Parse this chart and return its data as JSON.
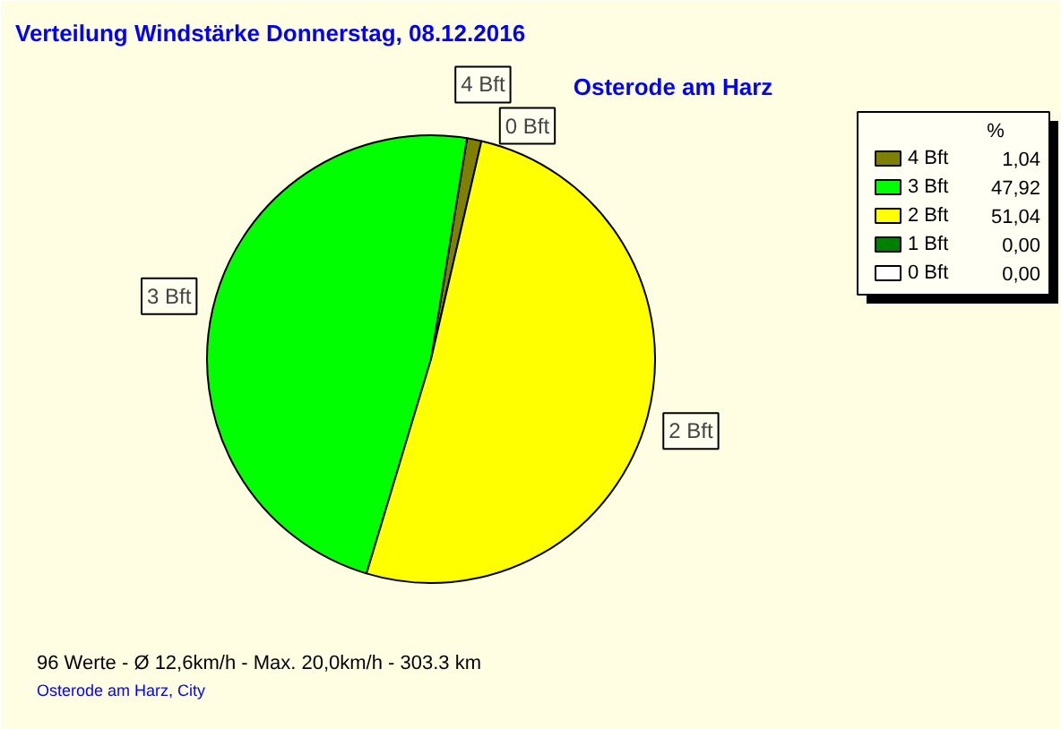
{
  "chart_data": {
    "type": "pie",
    "title": "Verteilung Windstärke  Donnerstag, 08.12.2016",
    "subtitle": "Osterode am Harz",
    "legend_title": "%",
    "categories": [
      "4 Bft",
      "3 Bft",
      "2 Bft",
      "1 Bft",
      "0 Bft"
    ],
    "values": [
      1.04,
      47.92,
      51.04,
      0.0,
      0.0
    ],
    "colors": [
      "#808000",
      "#00ff00",
      "#ffff00",
      "#008000",
      "#ffffff"
    ],
    "value_labels": [
      "1,04",
      "47,92",
      "51,04",
      "0,00",
      "0,00"
    ],
    "data_labels": true,
    "legend": "top right",
    "annotations": [
      "96 Werte   -   Ø 12,6km/h  -  Max. 20,0km/h   -   303.3 km",
      "Osterode am Harz, City"
    ]
  }
}
